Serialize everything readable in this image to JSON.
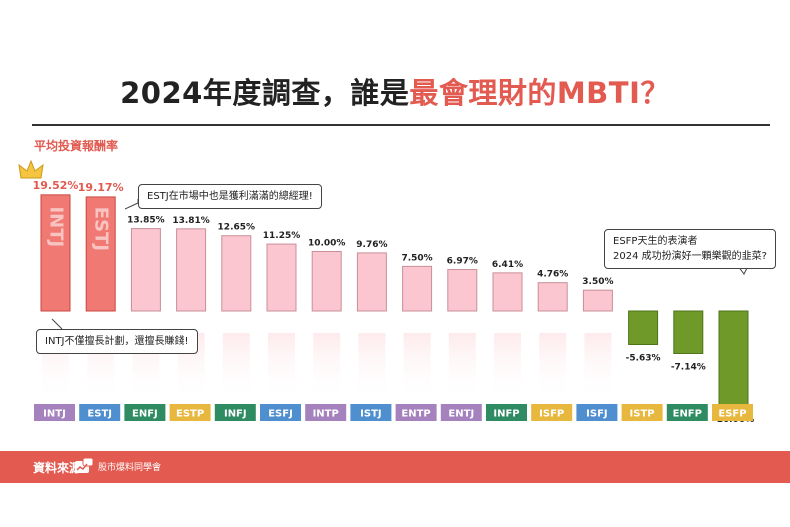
{
  "title": {
    "prefix": "2024年度調查，誰是",
    "highlight": "最會理財的MBTI？"
  },
  "ylabel": "平均投資報酬率",
  "callouts": {
    "estj": "ESTJ在市場中也是獲利滿滿的總經理!",
    "intj": "INTJ不僅擅長計劃，還擅長賺錢!",
    "esfp_line1": "ESFP天生的表演者",
    "esfp_line2": "2024 成功扮演好一顆樂觀的韭菜?"
  },
  "footer": {
    "source_label": "資料來源:",
    "source_name": "股市爆料同學會"
  },
  "colors": {
    "accent": "#e25a50",
    "top_bar": "#f07a73",
    "positive_bar": "#fbc6cf",
    "negative_bar": "#6f9a2a",
    "analyst": "#a582bd",
    "sentinel": "#4f8fcf",
    "diplomat": "#2e8b62",
    "explorer": "#e8b83e"
  },
  "chart_data": {
    "type": "bar",
    "title": "2024年度調查，誰是最會理財的MBTI？",
    "ylabel": "平均投資報酬率",
    "categories": [
      "INTJ",
      "ESTJ",
      "ENFJ",
      "ESTP",
      "INFJ",
      "ESFJ",
      "INTP",
      "ISTJ",
      "ENTP",
      "ENTJ",
      "INFP",
      "ISFP",
      "ISFJ",
      "ISTP",
      "ENFP",
      "ESFP"
    ],
    "values": [
      19.52,
      19.17,
      13.85,
      13.81,
      12.65,
      11.25,
      10.0,
      9.76,
      7.5,
      6.97,
      6.41,
      4.76,
      3.5,
      -5.63,
      -7.14,
      -16.0
    ],
    "value_labels": [
      "19.52%",
      "19.17%",
      "13.85%",
      "13.81%",
      "12.65%",
      "11.25%",
      "10.00%",
      "9.76%",
      "7.50%",
      "6.97%",
      "6.41%",
      "4.76%",
      "3.50%",
      "-5.63%",
      "-7.14%",
      "-16.00%"
    ],
    "groups": [
      "analyst",
      "sentinel",
      "diplomat",
      "explorer",
      "diplomat",
      "sentinel",
      "analyst",
      "sentinel",
      "analyst",
      "analyst",
      "diplomat",
      "explorer",
      "sentinel",
      "explorer",
      "diplomat",
      "explorer"
    ],
    "highlighted": [
      "INTJ",
      "ESTJ"
    ],
    "crown": "INTJ"
  }
}
